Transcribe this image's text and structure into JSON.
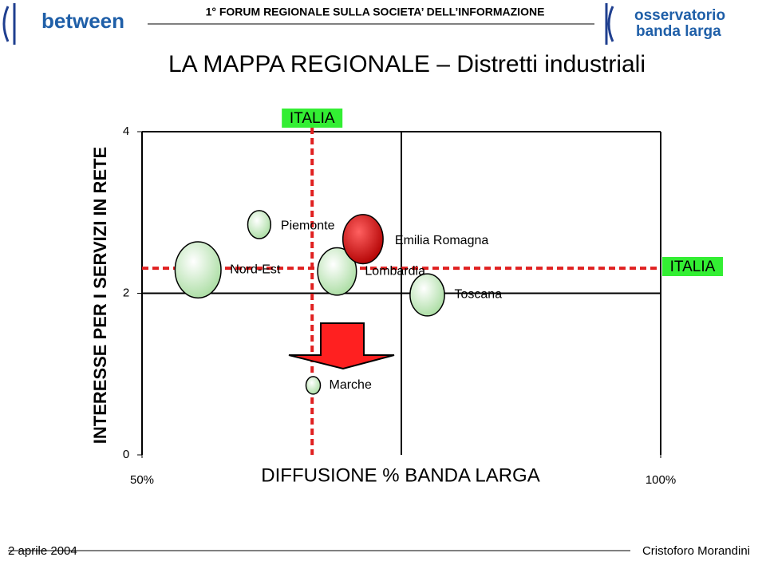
{
  "header": {
    "logo_left": "between",
    "forum": "1° FORUM REGIONALE SULLA SOCIETA’ DELL’INFORMAZIONE",
    "logo_right_1": "osservatorio",
    "logo_right_2": "banda larga"
  },
  "footer": {
    "date": "2 aprile 2004",
    "author": "Cristoforo Morandini"
  },
  "chart_data": {
    "type": "bubble",
    "title": "LA MAPPA REGIONALE – Distretti industriali",
    "x_label": "DIFFUSIONE % BANDA LARGA",
    "y_label": "INTERESSE PER I SERVIZI IN RETE",
    "xlim": [
      50,
      100
    ],
    "xticks": [
      {
        "value": 50,
        "label": "50%"
      },
      {
        "value": 100,
        "label": "100%"
      }
    ],
    "ylim": [
      0,
      4
    ],
    "yticks": [
      0,
      2,
      4
    ],
    "quadrant": {
      "x": 75,
      "y": 2
    },
    "reference": {
      "label": "ITALIA",
      "x": 66.4,
      "y": 2.31,
      "color": "#e02020"
    },
    "points": [
      {
        "name": "Nord-Est",
        "x": 55.4,
        "y": 2.29,
        "size": 32,
        "color": "#c8f0c0"
      },
      {
        "name": "Piemonte",
        "x": 61.3,
        "y": 2.85,
        "size": 16,
        "color": "#c8f0c0"
      },
      {
        "name": "Lombardia",
        "x": 68.8,
        "y": 2.27,
        "size": 27,
        "color": "#c8f0c0"
      },
      {
        "name": "Emilia Romagna",
        "x": 71.3,
        "y": 2.67,
        "size": 28,
        "color": "#e00000"
      },
      {
        "name": "Toscana",
        "x": 77.5,
        "y": 1.98,
        "size": 24,
        "color": "#c8f0c0"
      },
      {
        "name": "Marche",
        "x": 66.5,
        "y": 0.86,
        "size": 10,
        "color": "#c8f0c0"
      }
    ]
  }
}
